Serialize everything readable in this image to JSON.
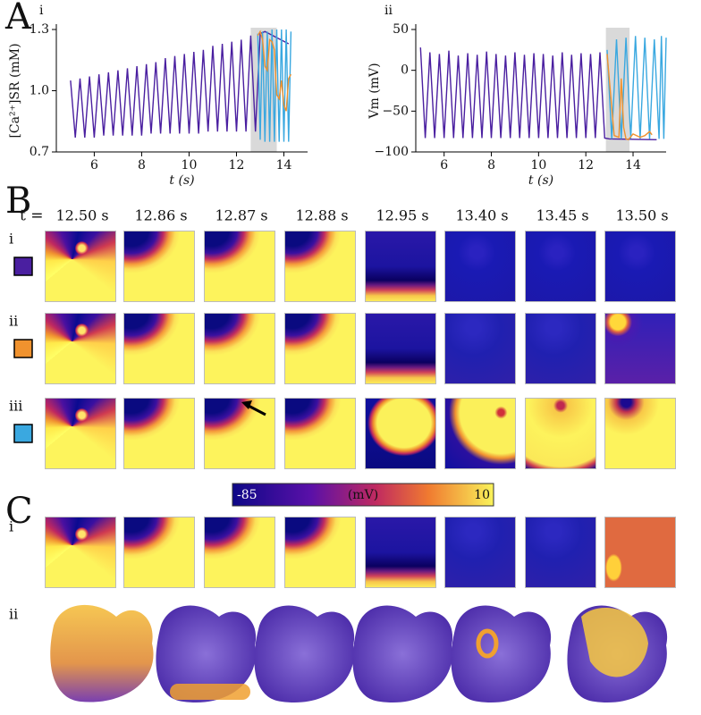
{
  "panel_a": {
    "label": "A"
  },
  "chart_data": [
    {
      "type": "line",
      "sub_label": "i",
      "xlabel": "t (s)",
      "ylabel": "[Ca²⁺]SR (mM)",
      "xlim": [
        4.4,
        15
      ],
      "xticks": [
        6,
        8,
        10,
        12,
        14
      ],
      "ylim": [
        0.7,
        1.3
      ],
      "yticks": [
        0.7,
        {
          "value": 1,
          "label": "1.0"
        },
        1.3
      ],
      "highlight": [
        12.6,
        13.7
      ],
      "series": [
        {
          "color": "#4a1fa0",
          "x": [
            5,
            5.2,
            5.4,
            5.6,
            5.8,
            6,
            6.2,
            6.4,
            6.6,
            6.8,
            7,
            7.2,
            7.4,
            7.6,
            7.8,
            8,
            8.2,
            8.4,
            8.6,
            8.8,
            9,
            9.2,
            9.4,
            9.6,
            9.8,
            10,
            10.2,
            10.4,
            10.6,
            10.8,
            11,
            11.2,
            11.4,
            11.6,
            11.8,
            12,
            12.2,
            12.4,
            12.6,
            12.8,
            13,
            13.2,
            14.2
          ],
          "values": [
            1.05,
            0.77,
            1.06,
            0.77,
            1.07,
            0.77,
            1.08,
            0.78,
            1.09,
            0.78,
            1.1,
            0.78,
            1.11,
            0.78,
            1.12,
            0.78,
            1.13,
            0.79,
            1.14,
            0.79,
            1.16,
            0.79,
            1.17,
            0.79,
            1.18,
            0.79,
            1.19,
            0.79,
            1.2,
            0.8,
            1.22,
            0.8,
            1.23,
            0.8,
            1.24,
            0.8,
            1.25,
            0.8,
            1.27,
            0.8,
            1.28,
            1.29,
            1.23
          ]
        },
        {
          "color": "#3aa8e0",
          "x": [
            12.9,
            13,
            13.1,
            13.2,
            13.3,
            13.4,
            13.5,
            13.6,
            13.7,
            13.8,
            13.9,
            14,
            14.1,
            14.2,
            14.3
          ],
          "values": [
            1.28,
            0.76,
            1.29,
            0.75,
            1.29,
            0.75,
            1.3,
            0.75,
            1.3,
            0.75,
            1.3,
            0.75,
            1.3,
            0.75,
            1.29
          ]
        },
        {
          "color": "#f0922e",
          "x": [
            12.9,
            13,
            13.1,
            13.2,
            13.3,
            13.4,
            13.5,
            13.6,
            13.7,
            13.8,
            13.9,
            14,
            14.1,
            14.2,
            14.3
          ],
          "values": [
            1.27,
            1.29,
            1.25,
            1.12,
            1.1,
            1.25,
            1.24,
            1.2,
            0.98,
            0.96,
            1.05,
            0.93,
            0.9,
            1.06,
            1.08
          ]
        }
      ]
    },
    {
      "type": "line",
      "sub_label": "ii",
      "xlabel": "t (s)",
      "ylabel": "Vm (mV)",
      "xlim": [
        4.8,
        15.4
      ],
      "xticks": [
        6,
        8,
        10,
        12,
        14
      ],
      "ylim": [
        -100,
        50
      ],
      "yticks": [
        {
          "value": -100,
          "label": "−100"
        },
        {
          "value": -50,
          "label": "−50"
        },
        0,
        50
      ],
      "highlight": [
        12.85,
        13.85
      ],
      "series": [
        {
          "color": "#4a1fa0",
          "x": [
            5,
            5.2,
            5.4,
            5.6,
            5.8,
            6,
            6.2,
            6.4,
            6.6,
            6.8,
            7,
            7.2,
            7.4,
            7.6,
            7.8,
            8,
            8.2,
            8.4,
            8.6,
            8.8,
            9,
            9.2,
            9.4,
            9.6,
            9.8,
            10,
            10.2,
            10.4,
            10.6,
            10.8,
            11,
            11.2,
            11.4,
            11.6,
            11.8,
            12,
            12.2,
            12.4,
            12.6,
            12.8,
            13,
            15
          ],
          "values": [
            28,
            -83,
            22,
            -83,
            20,
            -83,
            24,
            -83,
            18,
            -83,
            21,
            -83,
            19,
            -83,
            23,
            -83,
            20,
            -83,
            18,
            -83,
            22,
            -83,
            19,
            -83,
            21,
            -83,
            20,
            -83,
            18,
            -83,
            22,
            -83,
            19,
            -83,
            21,
            -83,
            20,
            -83,
            22,
            -83,
            -84,
            -85
          ]
        },
        {
          "color": "#3aa8e0",
          "x": [
            12.9,
            13.1,
            13.3,
            13.5,
            13.7,
            13.9,
            14.1,
            14.3,
            14.5,
            14.7,
            14.9,
            15.1,
            15.2,
            15.3,
            15.4
          ],
          "values": [
            25,
            -84,
            38,
            -84,
            40,
            -84,
            42,
            -84,
            40,
            -84,
            38,
            -84,
            42,
            -84,
            40
          ]
        },
        {
          "color": "#f0922e",
          "x": [
            12.9,
            13.2,
            13.4,
            13.5,
            13.6,
            13.7,
            13.8,
            14,
            14.3,
            14.5,
            14.7,
            14.8
          ],
          "values": [
            20,
            -80,
            -82,
            -10,
            -70,
            -84,
            -85,
            -78,
            -82,
            -80,
            -75,
            -79
          ]
        }
      ]
    }
  ],
  "panel_b": {
    "label": "B",
    "time_prefix": "t =",
    "times": [
      "12.50 s",
      "12.86 s",
      "12.87 s",
      "12.88 s",
      "12.95 s",
      "13.40 s",
      "13.45 s",
      "13.50 s"
    ],
    "rows": [
      "i",
      "ii",
      "iii"
    ],
    "row_colors": [
      "#4a1fa0",
      "#f0922e",
      "#3aa8e0"
    ]
  },
  "colorbar": {
    "min": "-85",
    "label": "(mV)",
    "max": "10"
  },
  "panel_c": {
    "label": "C",
    "rows": [
      "i",
      "ii"
    ]
  }
}
